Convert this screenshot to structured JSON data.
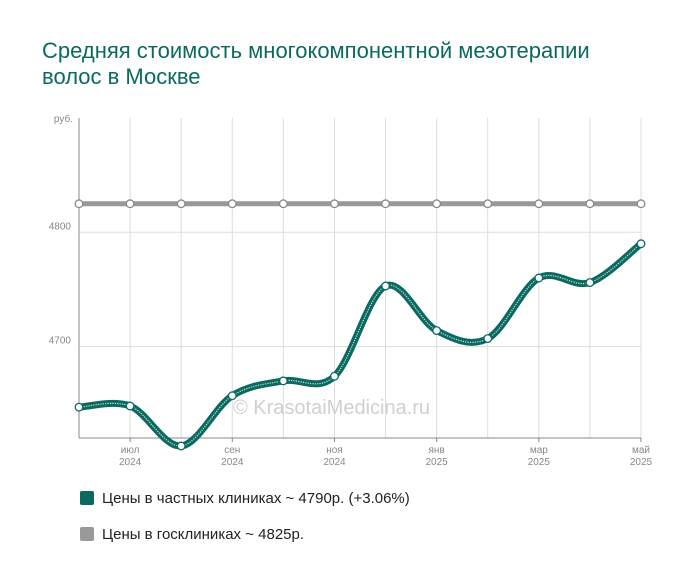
{
  "title": "Средняя стоимость многокомпонентной мезотерапии волос в Москве",
  "watermark": "© KrasotaiMedicina.ru",
  "colors": {
    "private": "#0b6a60",
    "public": "#999999",
    "grid": "#dddddd",
    "axis_text": "#888888"
  },
  "chart_data": {
    "type": "line",
    "y_unit_label": "руб.",
    "y_ticks": [
      4700,
      4800
    ],
    "ylim": [
      4620,
      4900
    ],
    "x_labels": [
      {
        "month": "июл",
        "year": "2024",
        "index": 1
      },
      {
        "month": "сен",
        "year": "2024",
        "index": 3
      },
      {
        "month": "ноя",
        "year": "2024",
        "index": 5
      },
      {
        "month": "янв",
        "year": "2025",
        "index": 7
      },
      {
        "month": "мар",
        "year": "2025",
        "index": 9
      },
      {
        "month": "май",
        "year": "2025",
        "index": 11
      }
    ],
    "x": [
      "2024-06",
      "2024-07",
      "2024-08",
      "2024-09",
      "2024-10",
      "2024-11",
      "2024-12",
      "2025-01",
      "2025-02",
      "2025-03",
      "2025-04",
      "2025-05"
    ],
    "series": [
      {
        "name": "Цены в частных клиниках",
        "color": "#0b6a60",
        "values": [
          4647,
          4648,
          4613,
          4657,
          4670,
          4674,
          4753,
          4714,
          4707,
          4760,
          4756,
          4790
        ]
      },
      {
        "name": "Цены в госклиниках",
        "color": "#999999",
        "values": [
          4825,
          4825,
          4825,
          4825,
          4825,
          4825,
          4825,
          4825,
          4825,
          4825,
          4825,
          4825
        ]
      }
    ],
    "grid": true
  },
  "legend": [
    {
      "label": "Цены в частных клиниках ~ 4790р. (+3.06%)",
      "color": "#0b6a60"
    },
    {
      "label": "Цены в госклиниках ~ 4825р.",
      "color": "#999999"
    }
  ]
}
